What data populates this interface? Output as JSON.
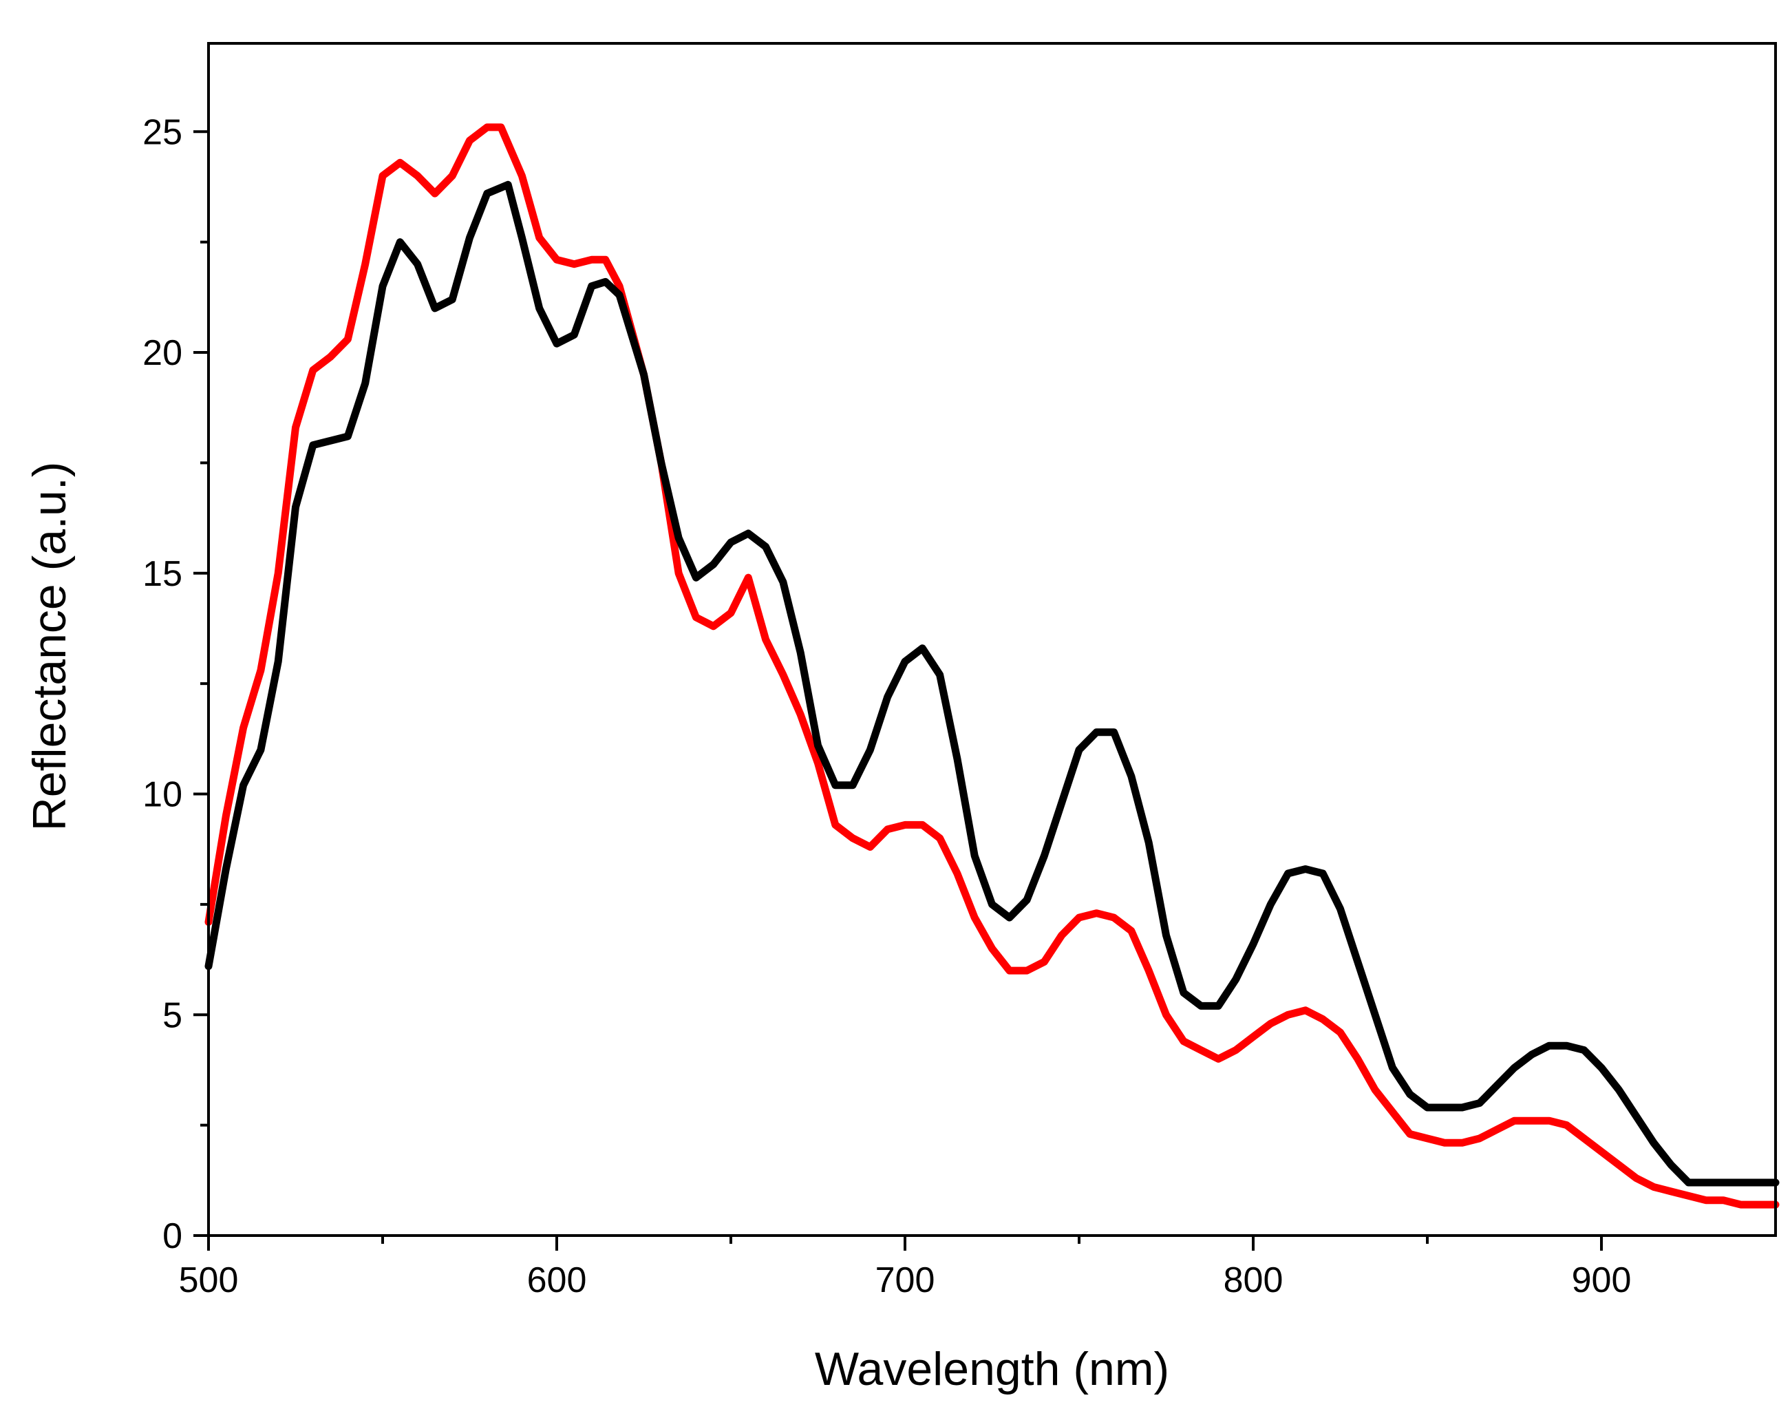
{
  "chart_data": {
    "type": "line",
    "title": "",
    "xlabel": "Wavelength (nm)",
    "ylabel": "Reflectance (a.u.)",
    "xlim": [
      500,
      950
    ],
    "ylim": [
      0,
      27
    ],
    "x_ticks": [
      500,
      600,
      700,
      800,
      900
    ],
    "y_ticks": [
      0,
      5,
      10,
      15,
      20,
      25
    ],
    "x_tick_labels": [
      "500",
      "600",
      "700",
      "800",
      "900"
    ],
    "y_tick_labels": [
      "0",
      "5",
      "10",
      "15",
      "20",
      "25"
    ],
    "grid": false,
    "legend": "none",
    "series": [
      {
        "name": "black",
        "color": "#000000",
        "x": [
          500,
          505,
          510,
          515,
          520,
          525,
          530,
          535,
          540,
          545,
          550,
          555,
          560,
          565,
          570,
          575,
          580,
          586,
          590,
          595,
          600,
          605,
          610,
          614,
          618,
          625,
          630,
          635,
          640,
          645,
          650,
          655,
          660,
          665,
          670,
          675,
          680,
          685,
          690,
          695,
          700,
          705,
          710,
          715,
          720,
          725,
          730,
          735,
          740,
          745,
          750,
          755,
          760,
          765,
          770,
          775,
          780,
          785,
          790,
          795,
          800,
          805,
          810,
          815,
          820,
          825,
          830,
          835,
          840,
          845,
          850,
          855,
          860,
          865,
          870,
          875,
          880,
          885,
          890,
          895,
          900,
          905,
          910,
          915,
          920,
          925,
          930,
          935,
          940,
          945,
          950
        ],
        "y": [
          6.1,
          8.3,
          10.2,
          11.0,
          13.0,
          16.5,
          17.9,
          18.0,
          18.1,
          19.3,
          21.5,
          22.5,
          22.0,
          21.0,
          21.2,
          22.6,
          23.6,
          23.8,
          22.6,
          21.0,
          20.2,
          20.4,
          21.5,
          21.6,
          21.3,
          19.5,
          17.5,
          15.8,
          14.9,
          15.2,
          15.7,
          15.9,
          15.6,
          14.8,
          13.2,
          11.1,
          10.2,
          10.2,
          11.0,
          12.2,
          13.0,
          13.3,
          12.7,
          10.8,
          8.6,
          7.5,
          7.2,
          7.6,
          8.6,
          9.8,
          11.0,
          11.4,
          11.4,
          10.4,
          8.9,
          6.8,
          5.5,
          5.2,
          5.2,
          5.8,
          6.6,
          7.5,
          8.2,
          8.3,
          8.2,
          7.4,
          6.2,
          5.0,
          3.8,
          3.2,
          2.9,
          2.9,
          2.9,
          3.0,
          3.4,
          3.8,
          4.1,
          4.3,
          4.3,
          4.2,
          3.8,
          3.3,
          2.7,
          2.1,
          1.6,
          1.2,
          1.2,
          1.2,
          1.2,
          1.2,
          1.2
        ]
      },
      {
        "name": "red",
        "color": "#ff0000",
        "x": [
          500,
          505,
          510,
          515,
          520,
          525,
          530,
          535,
          540,
          545,
          550,
          555,
          560,
          565,
          570,
          575,
          580,
          584,
          590,
          595,
          600,
          605,
          610,
          614,
          618,
          625,
          630,
          635,
          640,
          645,
          650,
          655,
          660,
          665,
          670,
          675,
          680,
          685,
          690,
          695,
          700,
          705,
          710,
          715,
          720,
          725,
          730,
          735,
          740,
          745,
          750,
          755,
          760,
          765,
          770,
          775,
          780,
          785,
          790,
          795,
          800,
          805,
          810,
          815,
          820,
          825,
          830,
          835,
          840,
          845,
          850,
          855,
          860,
          865,
          870,
          875,
          880,
          885,
          890,
          895,
          900,
          905,
          910,
          915,
          920,
          925,
          930,
          935,
          940,
          945,
          950
        ],
        "y": [
          7.1,
          9.5,
          11.5,
          12.8,
          15.0,
          18.3,
          19.6,
          19.9,
          20.3,
          22.0,
          24.0,
          24.3,
          24.0,
          23.6,
          24.0,
          24.8,
          25.1,
          25.1,
          24.0,
          22.6,
          22.1,
          22.0,
          22.1,
          22.1,
          21.5,
          19.5,
          17.5,
          15.0,
          14.0,
          13.8,
          14.1,
          14.9,
          13.5,
          12.7,
          11.8,
          10.7,
          9.3,
          9.0,
          8.8,
          9.2,
          9.3,
          9.3,
          9.0,
          8.2,
          7.2,
          6.5,
          6.0,
          6.0,
          6.2,
          6.8,
          7.2,
          7.3,
          7.2,
          6.9,
          6.0,
          5.0,
          4.4,
          4.2,
          4.0,
          4.2,
          4.5,
          4.8,
          5.0,
          5.1,
          4.9,
          4.6,
          4.0,
          3.3,
          2.8,
          2.3,
          2.2,
          2.1,
          2.1,
          2.2,
          2.4,
          2.6,
          2.6,
          2.6,
          2.5,
          2.2,
          1.9,
          1.6,
          1.3,
          1.1,
          1.0,
          0.9,
          0.8,
          0.8,
          0.7,
          0.7,
          0.7
        ]
      }
    ]
  }
}
